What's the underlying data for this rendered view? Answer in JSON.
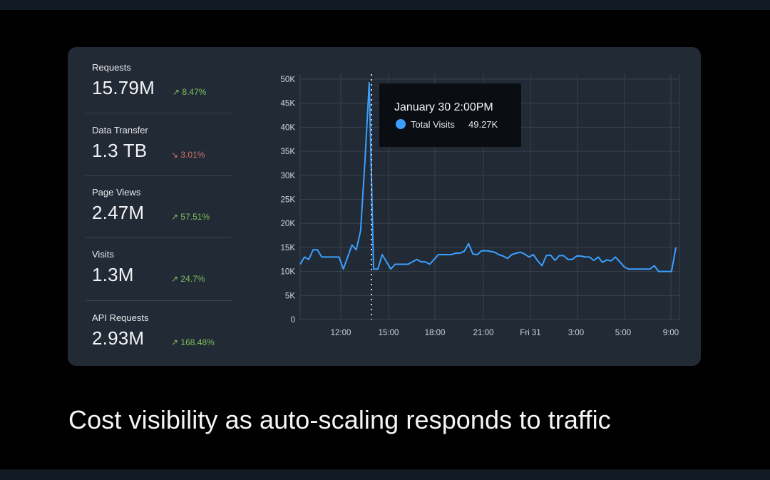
{
  "metrics": [
    {
      "label": "Requests",
      "value": "15.79M",
      "change": "8.47%",
      "direction": "up"
    },
    {
      "label": "Data Transfer",
      "value": "1.3 TB",
      "change": "3.01%",
      "direction": "down"
    },
    {
      "label": "Page Views",
      "value": "2.47M",
      "change": "57.51%",
      "direction": "up"
    },
    {
      "label": "Visits",
      "value": "1.3M",
      "change": "24.7%",
      "direction": "up"
    },
    {
      "label": "API Requests",
      "value": "2.93M",
      "change": "168.48%",
      "direction": "up"
    }
  ],
  "tooltip": {
    "title": "January 30 2:00PM",
    "series_label": "Total Visits",
    "series_value": "49.27K",
    "dot_color": "#3aa0ff"
  },
  "chart_data": {
    "type": "line",
    "x_ticks": [
      "12:00",
      "15:00",
      "18:00",
      "21:00",
      "Fri 31",
      "3:00",
      "5:00",
      "9:00"
    ],
    "y_ticks": [
      "0",
      "5K",
      "10K",
      "15K",
      "20K",
      "25K",
      "30K",
      "35K",
      "40K",
      "45K",
      "50K"
    ],
    "ylim": [
      0,
      50000
    ],
    "grid": true,
    "line_color": "#3aa0ff",
    "series": [
      {
        "values": [
          11500,
          13000,
          12500,
          14500,
          14500,
          13000,
          13000,
          13000,
          13000,
          13000,
          10500,
          13000,
          15500,
          14500,
          18500,
          33000,
          49270,
          10500,
          10500,
          13500,
          12000,
          10500,
          11500,
          11500,
          11500,
          11500,
          12000,
          12500,
          12000,
          12000,
          11500,
          12500,
          13500,
          13500,
          13500,
          13500,
          13800,
          13800,
          14200,
          15800,
          13600,
          13500,
          14300,
          14300,
          14200,
          14000,
          13500,
          13200,
          12700,
          13500,
          13800,
          14000,
          13600,
          13000,
          13500,
          12200,
          11200,
          13300,
          13400,
          12300,
          13300,
          13300,
          12500,
          12500,
          13200,
          13200,
          13000,
          13000,
          12300,
          13000,
          11900,
          12400,
          12200,
          13000,
          12000,
          11000,
          10500,
          10500,
          10500,
          10500,
          10500,
          10500,
          11200,
          10000,
          10000,
          10000,
          10000,
          15000
        ]
      }
    ]
  },
  "caption": "Cost visibility as auto-scaling responds to traffic"
}
